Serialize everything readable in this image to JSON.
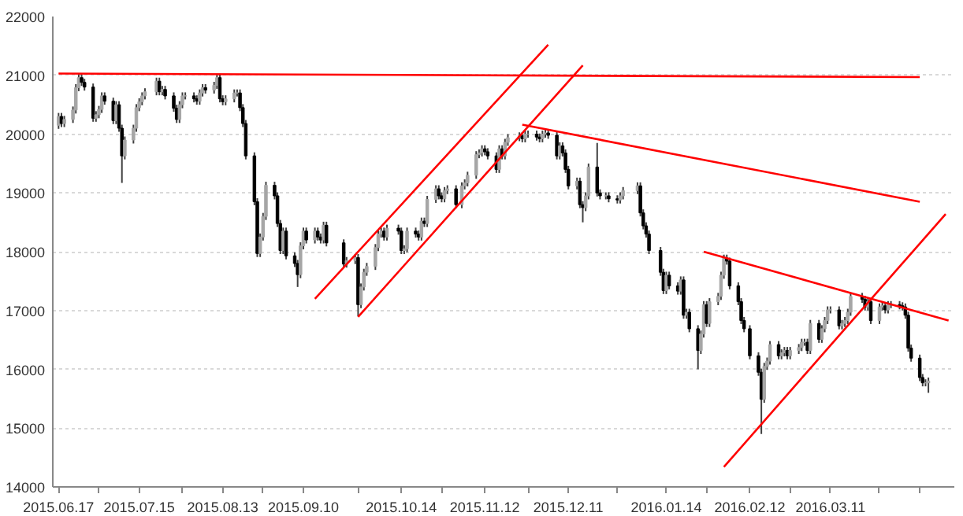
{
  "chart_data": {
    "type": "candlestick",
    "x": [
      "2015-06-17",
      "2015-06-18",
      "2015-06-19",
      "2015-06-22",
      "2015-06-23",
      "2015-06-24",
      "2015-06-25",
      "2015-06-26",
      "2015-06-29",
      "2015-06-30",
      "2015-07-01",
      "2015-07-02",
      "2015-07-03",
      "2015-07-06",
      "2015-07-07",
      "2015-07-08",
      "2015-07-09",
      "2015-07-10",
      "2015-07-13",
      "2015-07-14",
      "2015-07-15",
      "2015-07-16",
      "2015-07-17",
      "2015-07-21",
      "2015-07-22",
      "2015-07-23",
      "2015-07-24",
      "2015-07-27",
      "2015-07-28",
      "2015-07-29",
      "2015-07-30",
      "2015-07-31",
      "2015-08-03",
      "2015-08-04",
      "2015-08-05",
      "2015-08-06",
      "2015-08-07",
      "2015-08-10",
      "2015-08-11",
      "2015-08-12",
      "2015-08-13",
      "2015-08-14",
      "2015-08-17",
      "2015-08-18",
      "2015-08-19",
      "2015-08-20",
      "2015-08-21",
      "2015-08-24",
      "2015-08-25",
      "2015-08-26",
      "2015-08-27",
      "2015-08-28",
      "2015-08-31",
      "2015-09-01",
      "2015-09-02",
      "2015-09-03",
      "2015-09-04",
      "2015-09-07",
      "2015-09-08",
      "2015-09-09",
      "2015-09-10",
      "2015-09-11",
      "2015-09-14",
      "2015-09-15",
      "2015-09-16",
      "2015-09-17",
      "2015-09-18",
      "2015-09-24",
      "2015-09-25",
      "2015-09-28",
      "2015-09-29",
      "2015-09-30",
      "2015-10-01",
      "2015-10-02",
      "2015-10-05",
      "2015-10-06",
      "2015-10-07",
      "2015-10-08",
      "2015-10-09",
      "2015-10-13",
      "2015-10-14",
      "2015-10-15",
      "2015-10-16",
      "2015-10-19",
      "2015-10-20",
      "2015-10-21",
      "2015-10-22",
      "2015-10-23",
      "2015-10-26",
      "2015-10-27",
      "2015-10-28",
      "2015-10-29",
      "2015-10-30",
      "2015-11-02",
      "2015-11-04",
      "2015-11-05",
      "2015-11-06",
      "2015-11-09",
      "2015-11-10",
      "2015-11-11",
      "2015-11-12",
      "2015-11-13",
      "2015-11-16",
      "2015-11-17",
      "2015-11-18",
      "2015-11-19",
      "2015-11-20",
      "2015-11-24",
      "2015-11-25",
      "2015-11-26",
      "2015-11-27",
      "2015-11-30",
      "2015-12-01",
      "2015-12-02",
      "2015-12-03",
      "2015-12-04",
      "2015-12-07",
      "2015-12-08",
      "2015-12-09",
      "2015-12-10",
      "2015-12-11",
      "2015-12-14",
      "2015-12-15",
      "2015-12-16",
      "2015-12-17",
      "2015-12-18",
      "2015-12-21",
      "2015-12-22",
      "2015-12-24",
      "2015-12-25",
      "2015-12-28",
      "2015-12-29",
      "2015-12-30",
      "2016-01-04",
      "2016-01-05",
      "2016-01-06",
      "2016-01-07",
      "2016-01-08",
      "2016-01-12",
      "2016-01-13",
      "2016-01-14",
      "2016-01-15",
      "2016-01-18",
      "2016-01-19",
      "2016-01-20",
      "2016-01-21",
      "2016-01-22",
      "2016-01-25",
      "2016-01-26",
      "2016-01-27",
      "2016-01-28",
      "2016-01-29",
      "2016-02-01",
      "2016-02-02",
      "2016-02-03",
      "2016-02-04",
      "2016-02-05",
      "2016-02-08",
      "2016-02-09",
      "2016-02-10",
      "2016-02-12",
      "2016-02-15",
      "2016-02-16",
      "2016-02-17",
      "2016-02-18",
      "2016-02-19",
      "2016-02-22",
      "2016-02-23",
      "2016-02-24",
      "2016-02-25",
      "2016-02-26",
      "2016-02-29",
      "2016-03-01",
      "2016-03-02",
      "2016-03-03",
      "2016-03-04",
      "2016-03-07",
      "2016-03-08",
      "2016-03-09",
      "2016-03-10",
      "2016-03-11",
      "2016-03-14",
      "2016-03-15",
      "2016-03-16",
      "2016-03-17",
      "2016-03-18",
      "2016-03-22",
      "2016-03-23",
      "2016-03-24",
      "2016-03-25",
      "2016-03-28",
      "2016-03-29",
      "2016-03-30",
      "2016-03-31",
      "2016-04-01",
      "2016-04-04",
      "2016-04-05",
      "2016-04-06",
      "2016-04-07",
      "2016-04-08",
      "2016-04-11",
      "2016-04-12",
      "2016-04-13",
      "2016-04-14"
    ],
    "ohlc": [
      [
        20150,
        20360,
        20090,
        20300
      ],
      [
        20300,
        20360,
        20120,
        20180
      ],
      [
        20180,
        20310,
        20120,
        20250
      ],
      [
        20250,
        20470,
        20190,
        20410
      ],
      [
        20410,
        20850,
        20350,
        20790
      ],
      [
        20790,
        21020,
        20730,
        20960
      ],
      [
        20960,
        21020,
        20820,
        20880
      ],
      [
        20880,
        20940,
        20740,
        20800
      ],
      [
        20800,
        20860,
        20210,
        20270
      ],
      [
        20270,
        20390,
        20210,
        20330
      ],
      [
        20330,
        20480,
        20270,
        20420
      ],
      [
        20420,
        20710,
        20360,
        20650
      ],
      [
        20650,
        20710,
        20500,
        20560
      ],
      [
        20560,
        20620,
        20170,
        20230
      ],
      [
        20230,
        20560,
        20170,
        20500
      ],
      [
        20500,
        20560,
        20040,
        20100
      ],
      [
        20100,
        20160,
        19170,
        19630
      ],
      [
        19630,
        19960,
        19570,
        19900
      ],
      [
        19900,
        20160,
        19840,
        20100
      ],
      [
        20100,
        20510,
        20040,
        20450
      ],
      [
        20450,
        20610,
        20390,
        20550
      ],
      [
        20550,
        20710,
        20490,
        20650
      ],
      [
        20650,
        20780,
        20590,
        20720
      ],
      [
        20720,
        20960,
        20660,
        20900
      ],
      [
        20900,
        20960,
        20660,
        20720
      ],
      [
        20720,
        20820,
        20660,
        20760
      ],
      [
        20760,
        20820,
        20590,
        20650
      ],
      [
        20650,
        20710,
        20380,
        20440
      ],
      [
        20440,
        20500,
        20190,
        20250
      ],
      [
        20250,
        20560,
        20190,
        20500
      ],
      [
        20500,
        20710,
        20440,
        20650
      ],
      [
        20650,
        20710,
        20590,
        20650
      ],
      [
        20650,
        20710,
        20540,
        20600
      ],
      [
        20600,
        20660,
        20500,
        20560
      ],
      [
        20560,
        20760,
        20500,
        20700
      ],
      [
        20700,
        20850,
        20640,
        20790
      ],
      [
        20790,
        20850,
        20690,
        20750
      ],
      [
        20750,
        20890,
        20690,
        20830
      ],
      [
        20830,
        21020,
        20770,
        20960
      ],
      [
        20960,
        21020,
        20540,
        20600
      ],
      [
        20600,
        20660,
        20490,
        20550
      ],
      [
        20550,
        20660,
        20490,
        20600
      ],
      [
        20600,
        20760,
        20540,
        20700
      ],
      [
        20700,
        20760,
        20640,
        20700
      ],
      [
        20700,
        20760,
        20390,
        20450
      ],
      [
        20450,
        20510,
        20120,
        20180
      ],
      [
        20180,
        20240,
        19570,
        19630
      ],
      [
        19630,
        19690,
        18790,
        18850
      ],
      [
        18850,
        18910,
        17910,
        17970
      ],
      [
        17970,
        18310,
        17910,
        18250
      ],
      [
        18250,
        18660,
        18190,
        18600
      ],
      [
        18600,
        19190,
        18540,
        19130
      ],
      [
        19130,
        19190,
        18890,
        18950
      ],
      [
        18950,
        19010,
        18420,
        18480
      ],
      [
        18480,
        18540,
        17960,
        18020
      ],
      [
        18020,
        18410,
        17960,
        18350
      ],
      [
        18350,
        18410,
        17870,
        17930
      ],
      [
        17930,
        17990,
        17740,
        17800
      ],
      [
        17800,
        17860,
        17400,
        17610
      ],
      [
        17610,
        18160,
        17550,
        18100
      ],
      [
        18100,
        18410,
        18040,
        18350
      ],
      [
        18350,
        18410,
        18140,
        18200
      ],
      [
        18200,
        18410,
        18140,
        18350
      ],
      [
        18350,
        18410,
        18190,
        18250
      ],
      [
        18250,
        18310,
        18140,
        18200
      ],
      [
        18200,
        18510,
        18140,
        18450
      ],
      [
        18450,
        18510,
        18090,
        18150
      ],
      [
        18150,
        18210,
        17730,
        17790
      ],
      [
        17790,
        17910,
        17730,
        17850
      ],
      [
        17850,
        17960,
        17790,
        17900
      ],
      [
        17900,
        17960,
        16900,
        17100
      ],
      [
        17100,
        17460,
        17040,
        17400
      ],
      [
        17400,
        17710,
        17340,
        17650
      ],
      [
        17650,
        17810,
        17590,
        17750
      ],
      [
        17750,
        18130,
        17690,
        18070
      ],
      [
        18070,
        18360,
        18010,
        18300
      ],
      [
        18300,
        18410,
        18240,
        18350
      ],
      [
        18350,
        18410,
        18190,
        18250
      ],
      [
        18250,
        18460,
        18190,
        18400
      ],
      [
        18400,
        18460,
        18290,
        18350
      ],
      [
        18350,
        18410,
        17960,
        18020
      ],
      [
        18020,
        18110,
        17960,
        18050
      ],
      [
        18050,
        18410,
        17990,
        18350
      ],
      [
        18350,
        18410,
        18240,
        18300
      ],
      [
        18300,
        18360,
        18190,
        18250
      ],
      [
        18250,
        18580,
        18190,
        18520
      ],
      [
        18520,
        18580,
        18420,
        18480
      ],
      [
        18480,
        18950,
        18420,
        18890
      ],
      [
        18890,
        19130,
        18830,
        19070
      ],
      [
        19070,
        19130,
        18890,
        18950
      ],
      [
        18950,
        19010,
        18840,
        18900
      ],
      [
        18900,
        19100,
        18840,
        19040
      ],
      [
        19040,
        19130,
        18980,
        19070
      ],
      [
        19070,
        19130,
        18740,
        18800
      ],
      [
        18800,
        19180,
        18740,
        19120
      ],
      [
        19120,
        19230,
        19060,
        19170
      ],
      [
        19170,
        19360,
        19110,
        19300
      ],
      [
        19300,
        19710,
        19240,
        19650
      ],
      [
        19650,
        19740,
        19590,
        19680
      ],
      [
        19680,
        19810,
        19620,
        19750
      ],
      [
        19750,
        19810,
        19640,
        19700
      ],
      [
        19700,
        19760,
        19570,
        19630
      ],
      [
        19630,
        19690,
        19340,
        19400
      ],
      [
        19400,
        19810,
        19340,
        19750
      ],
      [
        19750,
        19810,
        19570,
        19630
      ],
      [
        19630,
        19920,
        19570,
        19860
      ],
      [
        19860,
        20000,
        19800,
        19940
      ],
      [
        19940,
        20030,
        19880,
        19970
      ],
      [
        19970,
        20030,
        19860,
        19920
      ],
      [
        19920,
        20060,
        19860,
        20000
      ],
      [
        20000,
        20060,
        19940,
        20000
      ],
      [
        20000,
        20060,
        19890,
        19950
      ],
      [
        19950,
        20010,
        19860,
        19920
      ],
      [
        19920,
        20060,
        19860,
        20000
      ],
      [
        20000,
        20080,
        19940,
        20020
      ],
      [
        20020,
        20080,
        19920,
        19980
      ],
      [
        19980,
        20040,
        19570,
        19630
      ],
      [
        19630,
        19860,
        19570,
        19800
      ],
      [
        19800,
        19860,
        19620,
        19680
      ],
      [
        19680,
        19740,
        19340,
        19400
      ],
      [
        19400,
        19460,
        19060,
        19120
      ],
      [
        19120,
        19260,
        19060,
        19200
      ],
      [
        19200,
        19260,
        18740,
        18800
      ],
      [
        18800,
        18860,
        18500,
        18750
      ],
      [
        18750,
        19010,
        18690,
        18950
      ],
      [
        18950,
        19500,
        18890,
        19440
      ],
      [
        19440,
        19850,
        18940,
        19000
      ],
      [
        19000,
        19060,
        18890,
        18950
      ],
      [
        18950,
        19010,
        18890,
        18950
      ],
      [
        18950,
        19010,
        18840,
        18900
      ],
      [
        18900,
        18960,
        18820,
        18880
      ],
      [
        18880,
        19010,
        18820,
        18950
      ],
      [
        18950,
        19100,
        18890,
        19040
      ],
      [
        19040,
        19180,
        18980,
        19120
      ],
      [
        19120,
        19180,
        18600,
        18660
      ],
      [
        18660,
        18720,
        18380,
        18440
      ],
      [
        18440,
        18500,
        18240,
        18300
      ],
      [
        18300,
        18360,
        17960,
        18020
      ],
      [
        18020,
        18080,
        17590,
        17650
      ],
      [
        17650,
        17710,
        17280,
        17340
      ],
      [
        17340,
        17660,
        17280,
        17600
      ],
      [
        17600,
        17660,
        17360,
        17420
      ],
      [
        17420,
        17480,
        17270,
        17330
      ],
      [
        17330,
        17580,
        17270,
        17520
      ],
      [
        17520,
        17580,
        16860,
        16920
      ],
      [
        16920,
        17030,
        16860,
        16970
      ],
      [
        16970,
        17030,
        16630,
        16690
      ],
      [
        16690,
        16750,
        16000,
        16320
      ],
      [
        16320,
        16660,
        16260,
        16600
      ],
      [
        16600,
        17160,
        16540,
        17100
      ],
      [
        17100,
        17160,
        16720,
        16780
      ],
      [
        16780,
        17210,
        16720,
        17150
      ],
      [
        17150,
        17300,
        17090,
        17240
      ],
      [
        17240,
        17660,
        17180,
        17600
      ],
      [
        17600,
        17950,
        17540,
        17890
      ],
      [
        17890,
        17950,
        17780,
        17840
      ],
      [
        17840,
        17900,
        17360,
        17420
      ],
      [
        17420,
        17480,
        17090,
        17150
      ],
      [
        17150,
        17210,
        16770,
        16830
      ],
      [
        16830,
        16890,
        16630,
        16690
      ],
      [
        16690,
        16750,
        16170,
        16230
      ],
      [
        16230,
        16290,
        15890,
        15950
      ],
      [
        15950,
        16010,
        14900,
        15490
      ],
      [
        15490,
        16110,
        15430,
        16050
      ],
      [
        16050,
        16200,
        15990,
        16140
      ],
      [
        16140,
        16480,
        16080,
        16420
      ],
      [
        16420,
        16480,
        16170,
        16230
      ],
      [
        16230,
        16340,
        16170,
        16280
      ],
      [
        16280,
        16380,
        16220,
        16320
      ],
      [
        16320,
        16380,
        16170,
        16230
      ],
      [
        16230,
        16380,
        16170,
        16320
      ],
      [
        16320,
        16430,
        16260,
        16370
      ],
      [
        16370,
        16520,
        16310,
        16460
      ],
      [
        16460,
        16520,
        16400,
        16460
      ],
      [
        16460,
        16520,
        16260,
        16320
      ],
      [
        16320,
        16840,
        16260,
        16780
      ],
      [
        16780,
        16840,
        16450,
        16510
      ],
      [
        16510,
        16750,
        16450,
        16690
      ],
      [
        16690,
        16890,
        16630,
        16830
      ],
      [
        16830,
        17070,
        16770,
        17010
      ],
      [
        17010,
        17070,
        16950,
        17010
      ],
      [
        17010,
        17070,
        16680,
        16740
      ],
      [
        16740,
        16840,
        16680,
        16780
      ],
      [
        16780,
        16890,
        16720,
        16830
      ],
      [
        16830,
        17030,
        16770,
        16970
      ],
      [
        16970,
        17300,
        16910,
        17240
      ],
      [
        17240,
        17300,
        17130,
        17190
      ],
      [
        17190,
        17250,
        17000,
        17060
      ],
      [
        17060,
        17210,
        17000,
        17150
      ],
      [
        17150,
        17210,
        16770,
        16830
      ],
      [
        16830,
        17120,
        16770,
        17060
      ],
      [
        17060,
        17140,
        17000,
        17080
      ],
      [
        17080,
        17140,
        16950,
        17010
      ],
      [
        17010,
        17160,
        16950,
        17100
      ],
      [
        17100,
        17160,
        17040,
        17100
      ],
      [
        17100,
        17160,
        17020,
        17080
      ],
      [
        17080,
        17140,
        17000,
        17060
      ],
      [
        17060,
        17120,
        16860,
        16920
      ],
      [
        16920,
        16980,
        16300,
        16360
      ],
      [
        16360,
        16420,
        16130,
        16190
      ],
      [
        16190,
        16250,
        15800,
        15860
      ],
      [
        15860,
        15920,
        15710,
        15770
      ],
      [
        15770,
        15830,
        15710,
        15770
      ],
      [
        15770,
        15860,
        15600,
        15800
      ]
    ],
    "colors": [
      "#a6a6a6",
      "#000000",
      "#a6a6a6",
      "#a6a6a6",
      "#a6a6a6",
      "#a6a6a6",
      "#000000",
      "#000000",
      "#000000",
      "#a6a6a6",
      "#a6a6a6",
      "#a6a6a6",
      "#000000",
      "#000000",
      "#a6a6a6",
      "#000000",
      "#000000",
      "#a6a6a6",
      "#a6a6a6",
      "#a6a6a6",
      "#a6a6a6",
      "#a6a6a6",
      "#a6a6a6",
      "#a6a6a6",
      "#000000",
      "#a6a6a6",
      "#000000",
      "#000000",
      "#000000",
      "#a6a6a6",
      "#a6a6a6",
      "#a6a6a6",
      "#000000",
      "#000000",
      "#a6a6a6",
      "#a6a6a6",
      "#000000",
      "#a6a6a6",
      "#a6a6a6",
      "#000000",
      "#000000",
      "#a6a6a6",
      "#a6a6a6",
      "#a6a6a6",
      "#000000",
      "#000000",
      "#000000",
      "#000000",
      "#000000",
      "#a6a6a6",
      "#a6a6a6",
      "#a6a6a6",
      "#000000",
      "#000000",
      "#000000",
      "#a6a6a6",
      "#000000",
      "#000000",
      "#000000",
      "#a6a6a6",
      "#a6a6a6",
      "#000000",
      "#a6a6a6",
      "#000000",
      "#000000",
      "#a6a6a6",
      "#000000",
      "#000000",
      "#a6a6a6",
      "#a6a6a6",
      "#000000",
      "#a6a6a6",
      "#a6a6a6",
      "#a6a6a6",
      "#a6a6a6",
      "#a6a6a6",
      "#a6a6a6",
      "#000000",
      "#a6a6a6",
      "#000000",
      "#000000",
      "#a6a6a6",
      "#a6a6a6",
      "#000000",
      "#000000",
      "#a6a6a6",
      "#000000",
      "#a6a6a6",
      "#a6a6a6",
      "#000000",
      "#000000",
      "#a6a6a6",
      "#a6a6a6",
      "#000000",
      "#a6a6a6",
      "#a6a6a6",
      "#a6a6a6",
      "#a6a6a6",
      "#a6a6a6",
      "#a6a6a6",
      "#000000",
      "#000000",
      "#000000",
      "#a6a6a6",
      "#000000",
      "#a6a6a6",
      "#a6a6a6",
      "#a6a6a6",
      "#000000",
      "#a6a6a6",
      "#a6a6a6",
      "#000000",
      "#000000",
      "#a6a6a6",
      "#a6a6a6",
      "#000000",
      "#000000",
      "#a6a6a6",
      "#000000",
      "#000000",
      "#000000",
      "#a6a6a6",
      "#000000",
      "#000000",
      "#a6a6a6",
      "#a6a6a6",
      "#000000",
      "#000000",
      "#a6a6a6",
      "#000000",
      "#000000",
      "#a6a6a6",
      "#a6a6a6",
      "#a6a6a6",
      "#000000",
      "#000000",
      "#000000",
      "#000000",
      "#000000",
      "#000000",
      "#a6a6a6",
      "#000000",
      "#000000",
      "#a6a6a6",
      "#000000",
      "#a6a6a6",
      "#000000",
      "#000000",
      "#a6a6a6",
      "#a6a6a6",
      "#000000",
      "#a6a6a6",
      "#a6a6a6",
      "#a6a6a6",
      "#a6a6a6",
      "#000000",
      "#000000",
      "#000000",
      "#000000",
      "#000000",
      "#000000",
      "#000000",
      "#000000",
      "#a6a6a6",
      "#a6a6a6",
      "#a6a6a6",
      "#000000",
      "#a6a6a6",
      "#a6a6a6",
      "#000000",
      "#a6a6a6",
      "#a6a6a6",
      "#a6a6a6",
      "#a6a6a6",
      "#000000",
      "#a6a6a6",
      "#000000",
      "#a6a6a6",
      "#a6a6a6",
      "#a6a6a6",
      "#a6a6a6",
      "#000000",
      "#a6a6a6",
      "#a6a6a6",
      "#a6a6a6",
      "#a6a6a6",
      "#000000",
      "#000000",
      "#a6a6a6",
      "#000000",
      "#a6a6a6",
      "#a6a6a6",
      "#000000",
      "#a6a6a6",
      "#a6a6a6",
      "#000000",
      "#000000",
      "#000000",
      "#000000",
      "#000000",
      "#000000",
      "#000000",
      "#a6a6a6",
      "#a6a6a6"
    ],
    "series": [
      {
        "type": "line",
        "color": "#ff0000",
        "x": [
          "2015-06-17",
          "2016-04-11"
        ],
        "values": [
          21030,
          20970
        ]
      },
      {
        "type": "line",
        "color": "#ff0000",
        "x": [
          "2015-09-14",
          "2015-12-04"
        ],
        "values": [
          17200,
          21520
        ]
      },
      {
        "type": "line",
        "color": "#ff0000",
        "x": [
          "2015-09-29",
          "2015-12-16"
        ],
        "values": [
          16890,
          21170
        ]
      },
      {
        "type": "line",
        "color": "#ff0000",
        "x": [
          "2015-11-25",
          "2016-04-11"
        ],
        "values": [
          20160,
          18850
        ]
      },
      {
        "type": "line",
        "color": "#ff0000",
        "x": [
          "2016-01-27",
          "2016-04-21"
        ],
        "values": [
          18000,
          16830
        ]
      },
      {
        "type": "line",
        "color": "#ff0000",
        "x": [
          "2016-02-03",
          "2016-04-20"
        ],
        "values": [
          14340,
          18640
        ]
      }
    ],
    "xlim": [
      "2015-06-15",
      "2016-04-23"
    ],
    "xticks": [
      {
        "value": "2015-06-17",
        "label": "2015.06.17"
      },
      {
        "value": "2015-07-01",
        "label": null
      },
      {
        "value": "2015-07-15",
        "label": "2015.07.15"
      },
      {
        "value": "2015-07-30",
        "label": null
      },
      {
        "value": "2015-08-13",
        "label": "2015.08.13"
      },
      {
        "value": "2015-08-27",
        "label": null
      },
      {
        "value": "2015-09-10",
        "label": "2015.09.10"
      },
      {
        "value": "2015-09-29",
        "label": null
      },
      {
        "value": "2015-10-14",
        "label": "2015.10.14"
      },
      {
        "value": "2015-10-28",
        "label": null
      },
      {
        "value": "2015-11-12",
        "label": "2015.11.12"
      },
      {
        "value": "2015-11-27",
        "label": null
      },
      {
        "value": "2015-12-11",
        "label": "2015.12.11"
      },
      {
        "value": "2015-12-28",
        "label": null
      },
      {
        "value": "2016-01-14",
        "label": "2016.01.14"
      },
      {
        "value": "2016-01-28",
        "label": null
      },
      {
        "value": "2016-02-12",
        "label": "2016.02.12"
      },
      {
        "value": "2016-02-26",
        "label": null
      },
      {
        "value": "2016-03-11",
        "label": "2016.03.11"
      },
      {
        "value": "2016-03-28",
        "label": null
      },
      {
        "value": "2016-04-11",
        "label": null
      }
    ],
    "ylim": [
      14000,
      22000
    ],
    "yticks": [
      14000,
      15000,
      16000,
      17000,
      18000,
      19000,
      20000,
      21000,
      22000
    ],
    "grid": "y"
  }
}
